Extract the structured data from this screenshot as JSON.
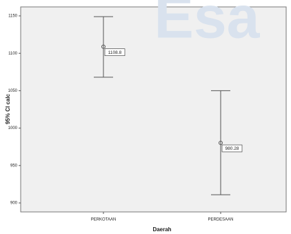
{
  "chart_data": {
    "type": "errorbar",
    "watermark": "Esa",
    "x_label": "Daerah",
    "y_label": "95% CI calc",
    "categories": [
      "PERKOTAAN",
      "PERDESAAN"
    ],
    "values": [
      1108.8,
      980.28
    ],
    "lower": [
      1068,
      911
    ],
    "upper": [
      1149,
      1050
    ],
    "ylim": [
      888,
      1162
    ],
    "yticks": [
      900,
      950,
      1000,
      1050,
      1100,
      1150
    ],
    "color": "#555555",
    "background": "#f0f0f0"
  }
}
